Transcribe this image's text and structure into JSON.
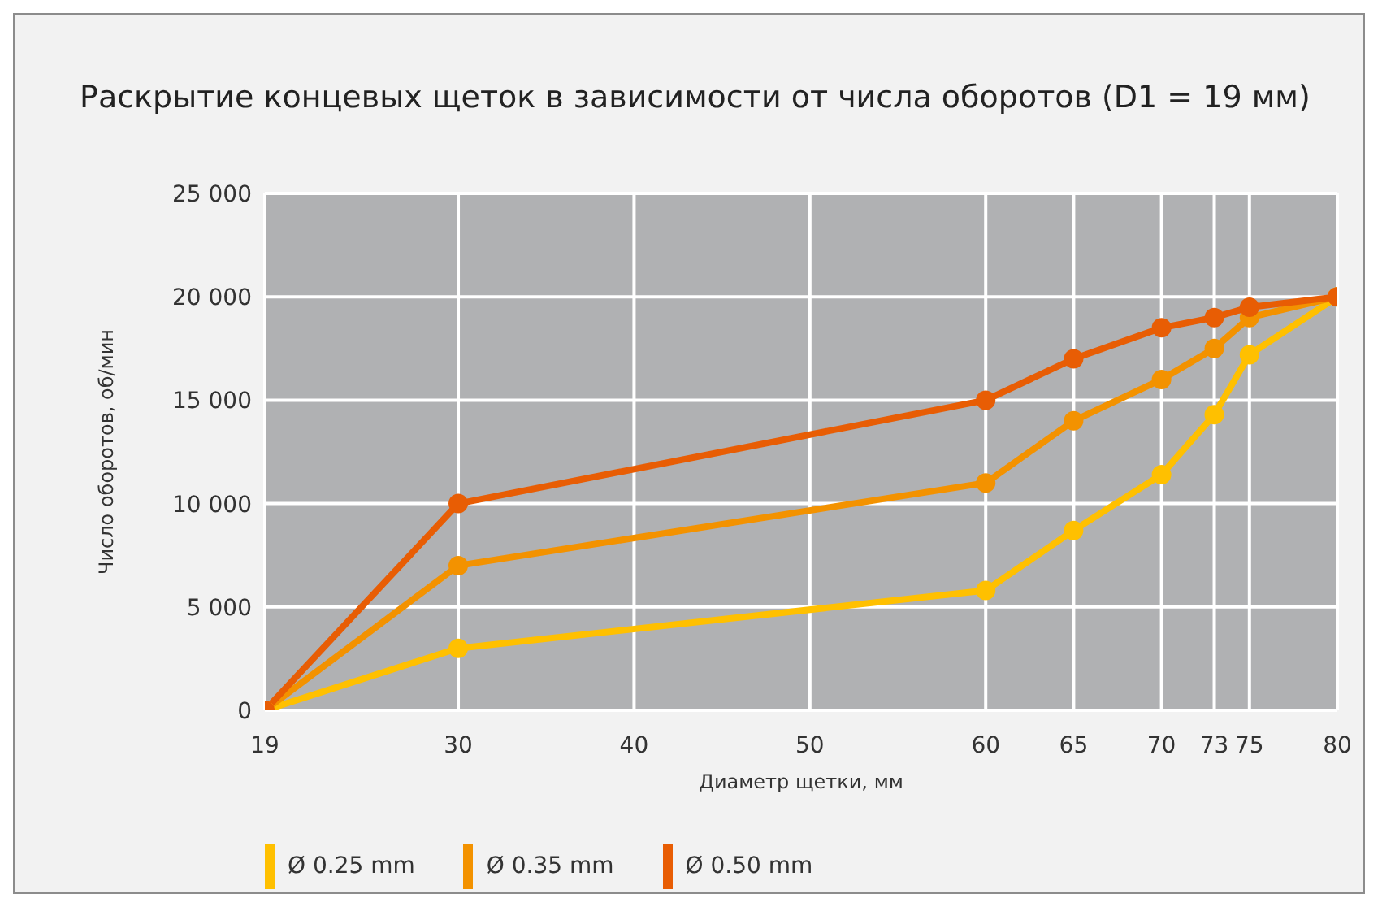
{
  "chart_data": {
    "type": "line",
    "title": "Раскрытие концевых щеток в зависимости от числа оборотов (D1 = 19 мм)",
    "xlabel": "Диаметр щетки, мм",
    "ylabel": "Число оборотов, об/мин",
    "x": [
      19,
      30,
      60,
      65,
      70,
      73,
      75,
      80
    ],
    "series": [
      {
        "name": "Ø 0.25 mm",
        "color": "#ffc000",
        "values": [
          0,
          3000,
          5800,
          8700,
          11400,
          14300,
          17200,
          20000
        ]
      },
      {
        "name": "Ø 0.35 mm",
        "color": "#f39200",
        "values": [
          0,
          7000,
          11000,
          14000,
          16000,
          17500,
          19000,
          20000
        ]
      },
      {
        "name": "Ø 0.50 mm",
        "color": "#e85d04",
        "values": [
          0,
          10000,
          15000,
          17000,
          18500,
          19000,
          19500,
          20000
        ]
      }
    ],
    "xlim": [
      19,
      80
    ],
    "xticks": [
      19,
      30,
      40,
      50,
      60,
      65,
      70,
      73,
      75,
      80
    ],
    "ylim": [
      0,
      25000
    ],
    "yticks": [
      0,
      {
        "value": 5000,
        "label": "5 000"
      },
      {
        "value": 10000,
        "label": "10 000"
      },
      {
        "value": 15000,
        "label": "15 000"
      },
      {
        "value": 20000,
        "label": "20 000"
      },
      {
        "value": 25000,
        "label": "25 000"
      }
    ],
    "grid": true,
    "legend": "bottom left",
    "marker": "circle",
    "line_style": "solid"
  }
}
